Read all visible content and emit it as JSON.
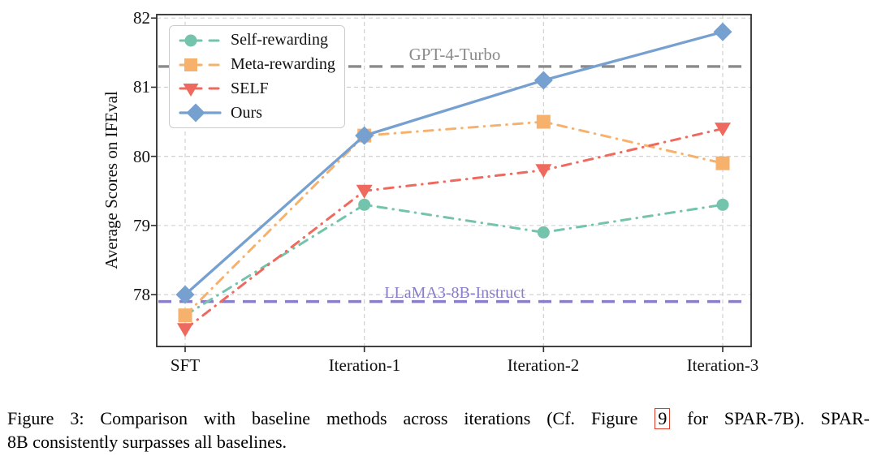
{
  "chart_data": {
    "type": "line",
    "title": "",
    "xlabel": "",
    "ylabel": "Average Scores on IFEval",
    "categories": [
      "SFT",
      "Iteration-1",
      "Iteration-2",
      "Iteration-3"
    ],
    "yticks": [
      82,
      81,
      80,
      79,
      78
    ],
    "ylim": [
      77.25,
      82.05
    ],
    "grid": "dashed, both axes",
    "legend_position": "upper left",
    "series": [
      {
        "name": "Self-rewarding",
        "values": [
          77.7,
          79.3,
          78.9,
          79.3
        ],
        "color": "#74c3ad",
        "marker": "circle",
        "linestyle": "dashdot"
      },
      {
        "name": "Meta-rewarding",
        "values": [
          77.7,
          80.3,
          80.5,
          79.9
        ],
        "color": "#f6b26d",
        "marker": "square",
        "linestyle": "dashdot"
      },
      {
        "name": "SELF",
        "values": [
          77.5,
          79.5,
          79.8,
          80.4
        ],
        "color": "#ee6a5e",
        "marker": "triangle-down",
        "linestyle": "dashdot"
      },
      {
        "name": "Ours",
        "values": [
          78.0,
          80.3,
          81.1,
          81.8
        ],
        "color": "#76a0d0",
        "marker": "diamond",
        "linestyle": "solid"
      }
    ],
    "baselines": [
      {
        "label": "GPT-4-Turbo",
        "value": 81.3,
        "color": "#8a8a8a"
      },
      {
        "label": "LLaMA3-8B-Instruct",
        "value": 77.9,
        "color": "#8b7ec8"
      }
    ]
  },
  "caption": {
    "figure_label": "Figure 3:",
    "line1_prefix": "Figure 3: Comparison with baseline methods across iterations (Cf. Figure",
    "figure_ref": "9",
    "line1_suffix": " for SPAR-7B). SPAR-",
    "line2": "8B consistently surpasses all baselines."
  }
}
